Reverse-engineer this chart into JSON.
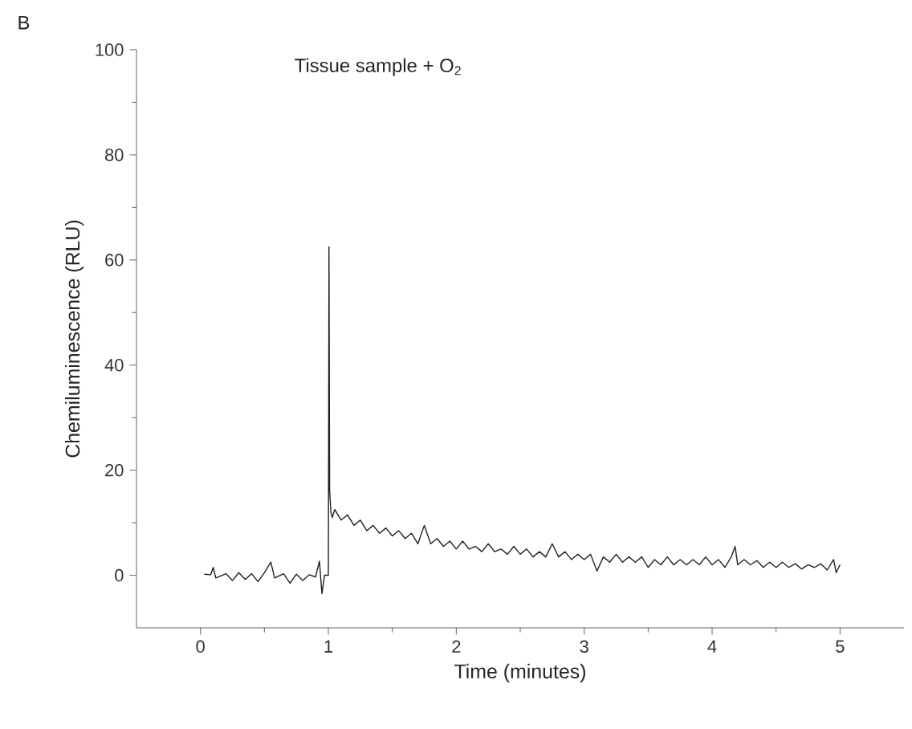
{
  "chart_data": {
    "type": "line",
    "xlabel": "Time (minutes)",
    "ylabel": "Chemiluminescence (RLU)",
    "annotations": [
      "B",
      "Tissue sample + O$_{2}$"
    ],
    "xlim": [
      -0.5,
      5.5
    ],
    "ylim": [
      -10,
      100
    ],
    "xticks": [
      0,
      1,
      2,
      3,
      4,
      5
    ],
    "yticks": [
      0,
      20,
      40,
      60,
      80,
      100
    ],
    "color": "#231f20",
    "x": [
      0.03,
      0.08,
      0.1,
      0.12,
      0.2,
      0.25,
      0.3,
      0.35,
      0.4,
      0.45,
      0.5,
      0.55,
      0.58,
      0.65,
      0.7,
      0.75,
      0.8,
      0.85,
      0.9,
      0.93,
      0.95,
      0.97,
      1.0,
      1.005,
      1.01,
      1.02,
      1.03,
      1.05,
      1.1,
      1.15,
      1.2,
      1.25,
      1.3,
      1.35,
      1.4,
      1.45,
      1.5,
      1.55,
      1.6,
      1.65,
      1.7,
      1.75,
      1.8,
      1.85,
      1.9,
      1.95,
      2.0,
      2.05,
      2.1,
      2.15,
      2.2,
      2.25,
      2.3,
      2.35,
      2.4,
      2.45,
      2.5,
      2.55,
      2.6,
      2.65,
      2.7,
      2.75,
      2.8,
      2.85,
      2.9,
      2.95,
      3.0,
      3.05,
      3.1,
      3.15,
      3.2,
      3.25,
      3.3,
      3.35,
      3.4,
      3.45,
      3.5,
      3.55,
      3.6,
      3.65,
      3.7,
      3.75,
      3.8,
      3.85,
      3.9,
      3.95,
      4.0,
      4.05,
      4.1,
      4.15,
      4.18,
      4.2,
      4.25,
      4.3,
      4.35,
      4.4,
      4.45,
      4.5,
      4.55,
      4.6,
      4.65,
      4.7,
      4.75,
      4.8,
      4.85,
      4.9,
      4.95,
      4.97,
      5.0
    ],
    "values": [
      0.2,
      0.1,
      1.5,
      -0.5,
      0.3,
      -1,
      0.5,
      -0.8,
      0.3,
      -1.2,
      0.5,
      2.5,
      -0.5,
      0.3,
      -1.5,
      0.2,
      -1,
      0.1,
      -0.3,
      2.7,
      -3.5,
      0,
      0,
      62.5,
      16,
      12,
      11,
      12.5,
      10.5,
      11.5,
      9.5,
      10.5,
      8.5,
      9.5,
      8,
      9,
      7.5,
      8.5,
      7,
      8,
      6,
      9.5,
      6,
      7,
      5.5,
      6.5,
      5,
      6.5,
      5,
      5.5,
      4.5,
      6,
      4.5,
      5,
      4,
      5.5,
      4,
      5,
      3.5,
      4.5,
      3.5,
      6,
      3.5,
      4.5,
      3,
      4,
      3,
      4,
      0.8,
      3.5,
      2.5,
      4,
      2.5,
      3.5,
      2.5,
      3.5,
      1.5,
      3,
      2,
      3.5,
      2,
      3,
      2,
      3,
      2,
      3.5,
      2,
      3,
      1.5,
      3.5,
      5.5,
      2,
      3,
      2,
      2.8,
      1.5,
      2.5,
      1.5,
      2.5,
      1.5,
      2.2,
      1.2,
      2,
      1.5,
      2.2,
      1,
      3,
      0.5,
      2
    ]
  }
}
